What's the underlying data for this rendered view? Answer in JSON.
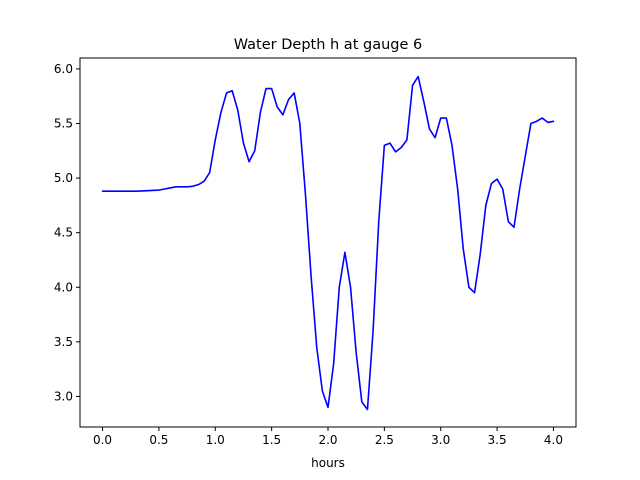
{
  "chart_data": {
    "type": "line",
    "title": "Water Depth h at gauge 6",
    "xlabel": "hours",
    "ylabel": "",
    "xlim": [
      -0.2,
      4.2
    ],
    "ylim": [
      2.72,
      6.1
    ],
    "x_ticks": [
      {
        "value": 0.0,
        "label": "0.0"
      },
      {
        "value": 0.5,
        "label": "0.5"
      },
      {
        "value": 1.0,
        "label": "1.0"
      },
      {
        "value": 1.5,
        "label": "1.5"
      },
      {
        "value": 2.0,
        "label": "2.0"
      },
      {
        "value": 2.5,
        "label": "2.5"
      },
      {
        "value": 3.0,
        "label": "3.0"
      },
      {
        "value": 3.5,
        "label": "3.5"
      },
      {
        "value": 4.0,
        "label": "4.0"
      }
    ],
    "y_ticks": [
      {
        "value": 3.0,
        "label": "3.0"
      },
      {
        "value": 3.5,
        "label": "3.5"
      },
      {
        "value": 4.0,
        "label": "4.0"
      },
      {
        "value": 4.5,
        "label": "4.5"
      },
      {
        "value": 5.0,
        "label": "5.0"
      },
      {
        "value": 5.5,
        "label": "5.5"
      },
      {
        "value": 6.0,
        "label": "6.0"
      }
    ],
    "grid": false,
    "series": [
      {
        "color": "#0000ff",
        "x": [
          0.0,
          0.1,
          0.2,
          0.3,
          0.4,
          0.5,
          0.55,
          0.6,
          0.65,
          0.7,
          0.75,
          0.8,
          0.85,
          0.9,
          0.95,
          1.0,
          1.05,
          1.1,
          1.15,
          1.2,
          1.25,
          1.3,
          1.35,
          1.4,
          1.45,
          1.5,
          1.55,
          1.6,
          1.65,
          1.7,
          1.75,
          1.8,
          1.85,
          1.9,
          1.95,
          2.0,
          2.05,
          2.1,
          2.15,
          2.2,
          2.25,
          2.3,
          2.35,
          2.4,
          2.45,
          2.5,
          2.55,
          2.6,
          2.65,
          2.7,
          2.75,
          2.8,
          2.85,
          2.9,
          2.95,
          3.0,
          3.05,
          3.1,
          3.15,
          3.2,
          3.25,
          3.3,
          3.35,
          3.4,
          3.45,
          3.5,
          3.55,
          3.6,
          3.65,
          3.7,
          3.75,
          3.8,
          3.85,
          3.9,
          3.95,
          4.0
        ],
        "y": [
          4.88,
          4.88,
          4.88,
          4.88,
          4.885,
          4.89,
          4.9,
          4.91,
          4.92,
          4.92,
          4.92,
          4.925,
          4.94,
          4.97,
          5.05,
          5.35,
          5.6,
          5.78,
          5.8,
          5.62,
          5.32,
          5.15,
          5.25,
          5.6,
          5.82,
          5.82,
          5.65,
          5.58,
          5.72,
          5.78,
          5.5,
          4.85,
          4.1,
          3.45,
          3.05,
          2.9,
          3.3,
          4.0,
          4.32,
          4.0,
          3.4,
          2.95,
          2.88,
          3.6,
          4.6,
          5.3,
          5.32,
          5.24,
          5.28,
          5.35,
          5.85,
          5.93,
          5.7,
          5.45,
          5.37,
          5.55,
          5.55,
          5.3,
          4.9,
          4.35,
          4.0,
          3.95,
          4.3,
          4.75,
          4.95,
          4.99,
          4.9,
          4.6,
          4.55,
          4.9,
          5.2,
          5.5,
          5.52,
          5.55,
          5.51,
          5.52
        ]
      }
    ]
  }
}
